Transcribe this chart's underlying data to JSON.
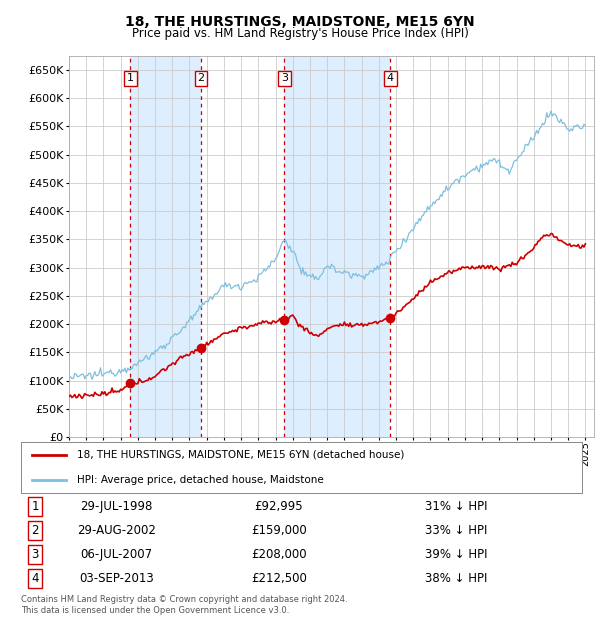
{
  "title": "18, THE HURSTINGS, MAIDSTONE, ME15 6YN",
  "subtitle": "Price paid vs. HM Land Registry's House Price Index (HPI)",
  "footer": "Contains HM Land Registry data © Crown copyright and database right 2024.\nThis data is licensed under the Open Government Licence v3.0.",
  "hpi_color": "#7fbfdf",
  "price_color": "#cc0000",
  "marker_color": "#cc0000",
  "vline_color": "#cc0000",
  "shade_color": "#ddeeff",
  "ylim": [
    0,
    675000
  ],
  "yticks": [
    0,
    50000,
    100000,
    150000,
    200000,
    250000,
    300000,
    350000,
    400000,
    450000,
    500000,
    550000,
    600000,
    650000
  ],
  "xlim_left": 1995.0,
  "xlim_right": 2025.5,
  "transactions": [
    {
      "label": "1",
      "date": "29-JUL-1998",
      "year": 1998.57,
      "price": 92995,
      "pct": "31% ↓ HPI"
    },
    {
      "label": "2",
      "date": "29-AUG-2002",
      "year": 2002.66,
      "price": 159000,
      "pct": "33% ↓ HPI"
    },
    {
      "label": "3",
      "date": "06-JUL-2007",
      "year": 2007.51,
      "price": 208000,
      "pct": "39% ↓ HPI"
    },
    {
      "label": "4",
      "date": "03-SEP-2013",
      "year": 2013.67,
      "price": 212500,
      "pct": "38% ↓ HPI"
    }
  ],
  "legend_entries": [
    {
      "label": "18, THE HURSTINGS, MAIDSTONE, ME15 6YN (detached house)",
      "color": "#cc0000"
    },
    {
      "label": "HPI: Average price, detached house, Maidstone",
      "color": "#7fbfdf"
    }
  ],
  "hpi_anchors": {
    "1995.0": 105000,
    "1996.0": 108000,
    "1997.0": 112000,
    "1998.0": 118000,
    "1999.0": 130000,
    "2000.0": 150000,
    "2001.0": 175000,
    "2002.0": 205000,
    "2003.0": 240000,
    "2004.0": 268000,
    "2005.0": 268000,
    "2006.0": 282000,
    "2007.0": 315000,
    "2007.5": 350000,
    "2008.0": 330000,
    "2008.5": 295000,
    "2009.0": 280000,
    "2009.5": 283000,
    "2010.0": 305000,
    "2010.5": 295000,
    "2011.0": 292000,
    "2011.5": 285000,
    "2012.0": 288000,
    "2012.5": 290000,
    "2013.0": 300000,
    "2013.5": 310000,
    "2014.0": 330000,
    "2015.0": 370000,
    "2016.0": 410000,
    "2017.0": 440000,
    "2017.5": 455000,
    "2018.0": 465000,
    "2018.5": 475000,
    "2019.0": 480000,
    "2019.5": 490000,
    "2020.0": 485000,
    "2020.5": 470000,
    "2021.0": 490000,
    "2021.5": 510000,
    "2022.0": 530000,
    "2022.5": 555000,
    "2023.0": 575000,
    "2023.5": 560000,
    "2024.0": 545000,
    "2024.5": 548000,
    "2025.0": 550000
  },
  "price_anchors": {
    "1995.0": 72000,
    "1996.0": 74000,
    "1997.0": 76000,
    "1998.0": 82000,
    "1998.57": 92995,
    "1999.0": 96000,
    "2000.0": 108000,
    "2001.0": 130000,
    "2002.0": 148000,
    "2002.66": 159000,
    "2003.0": 165000,
    "2004.0": 183000,
    "2005.0": 193000,
    "2006.0": 200000,
    "2007.0": 205000,
    "2007.51": 208000,
    "2008.0": 215000,
    "2008.5": 195000,
    "2009.0": 185000,
    "2009.5": 178000,
    "2010.0": 193000,
    "2010.5": 197000,
    "2011.0": 200000,
    "2011.5": 196000,
    "2012.0": 198000,
    "2012.5": 202000,
    "2013.0": 204000,
    "2013.67": 212500,
    "2014.0": 218000,
    "2015.0": 245000,
    "2016.0": 275000,
    "2017.0": 290000,
    "2018.0": 300000,
    "2019.0": 302000,
    "2020.0": 298000,
    "2021.0": 308000,
    "2022.0": 335000,
    "2022.5": 355000,
    "2023.0": 360000,
    "2023.5": 348000,
    "2024.0": 340000,
    "2024.5": 338000,
    "2025.0": 338000
  }
}
